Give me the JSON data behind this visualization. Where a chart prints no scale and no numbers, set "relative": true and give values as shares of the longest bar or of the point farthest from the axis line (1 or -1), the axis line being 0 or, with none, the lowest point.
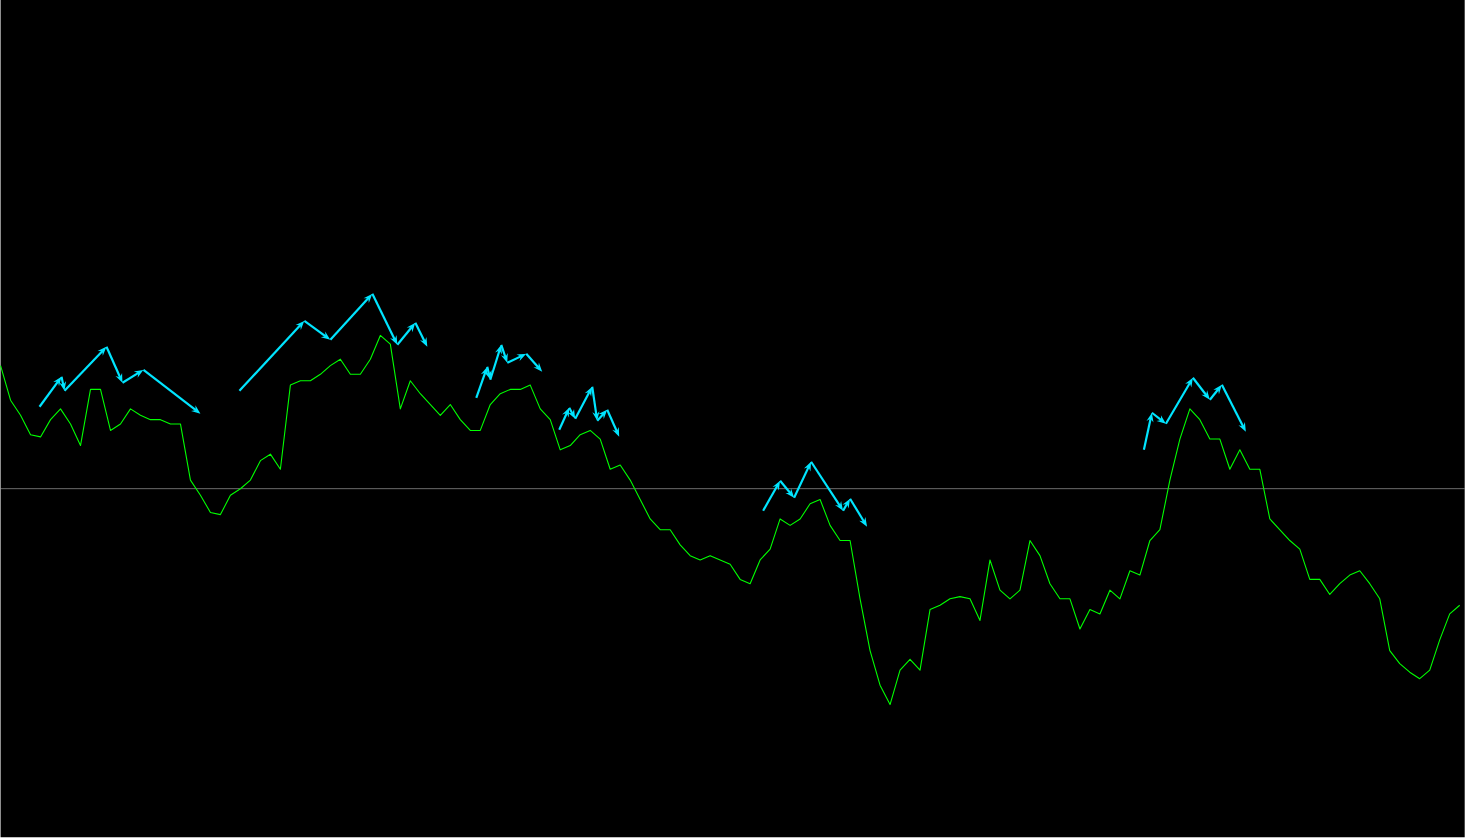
{
  "chart_data": {
    "type": "line",
    "relative": true,
    "marker": "none",
    "categories": [
      null,
      null,
      null,
      null,
      null,
      null,
      null,
      null,
      null,
      null,
      null,
      null,
      null,
      null,
      null,
      null,
      null,
      null,
      null,
      null,
      null,
      null,
      null,
      null,
      null,
      null,
      null,
      null,
      null,
      null,
      null,
      null,
      null,
      null,
      null,
      null,
      null,
      null,
      null,
      null,
      null,
      null,
      null,
      null,
      null,
      null,
      null,
      null,
      null,
      null,
      null,
      null,
      null,
      null,
      null,
      null,
      null,
      null,
      null,
      null,
      null,
      null,
      null,
      null,
      null,
      null,
      null,
      null,
      null,
      null,
      null,
      null,
      null,
      null,
      null,
      null,
      null,
      null,
      null,
      null,
      null,
      null,
      null,
      null,
      null,
      null,
      null,
      null,
      null,
      null,
      null,
      null,
      null,
      null,
      null,
      null,
      null,
      null,
      null,
      null,
      null,
      null,
      null,
      null,
      null,
      null,
      null,
      null,
      null,
      null,
      null,
      null,
      null,
      null,
      null,
      null,
      null,
      null,
      null,
      null,
      null,
      null,
      null,
      null,
      null,
      null,
      null,
      null,
      null,
      null,
      null,
      null,
      null,
      null,
      null,
      null,
      null,
      null,
      null,
      null,
      null,
      null,
      null,
      null,
      null,
      null,
      null
    ],
    "series": [
      {
        "color": "#00ff00",
        "values": [
          0.57,
          0.41,
          0.34,
          0.25,
          0.24,
          0.32,
          0.37,
          0.3,
          0.2,
          0.46,
          0.46,
          0.27,
          0.3,
          0.37,
          0.34,
          0.32,
          0.32,
          0.3,
          0.3,
          0.04,
          -0.03,
          -0.11,
          -0.12,
          -0.03,
          0,
          0.04,
          0.13,
          0.16,
          0.09,
          0.48,
          0.5,
          0.5,
          0.53,
          0.57,
          0.6,
          0.53,
          0.53,
          0.6,
          0.71,
          0.67,
          0.37,
          0.5,
          0.44,
          0.39,
          0.34,
          0.39,
          0.32,
          0.27,
          0.27,
          0.39,
          0.44,
          0.46,
          0.46,
          0.48,
          0.37,
          0.32,
          0.18,
          0.2,
          0.25,
          0.27,
          0.23,
          0.09,
          0.11,
          0.04,
          -0.05,
          -0.14,
          -0.19,
          -0.19,
          -0.26,
          -0.31,
          -0.33,
          -0.31,
          -0.33,
          -0.35,
          -0.42,
          -0.44,
          -0.33,
          -0.28,
          -0.14,
          -0.17,
          -0.14,
          -0.07,
          -0.05,
          -0.17,
          -0.24,
          -0.24,
          -0.51,
          -0.75,
          -0.91,
          -1,
          -0.84,
          -0.79,
          -0.84,
          -0.56,
          -0.54,
          -0.51,
          -0.5,
          -0.51,
          -0.61,
          -0.33,
          -0.47,
          -0.51,
          -0.47,
          -0.24,
          -0.31,
          -0.44,
          -0.51,
          -0.51,
          -0.65,
          -0.56,
          -0.58,
          -0.47,
          -0.51,
          -0.38,
          -0.4,
          -0.24,
          -0.19,
          0.04,
          0.23,
          0.37,
          0.32,
          0.23,
          0.23,
          0.09,
          0.18,
          0.09,
          0.09,
          -0.14,
          -0.19,
          -0.24,
          -0.28,
          -0.42,
          -0.42,
          -0.49,
          -0.44,
          -0.4,
          -0.38,
          -0.44,
          -0.51,
          -0.75,
          -0.81,
          -0.85,
          -0.88,
          -0.84,
          -0.7,
          -0.58,
          -0.54
        ]
      }
    ]
  }
}
